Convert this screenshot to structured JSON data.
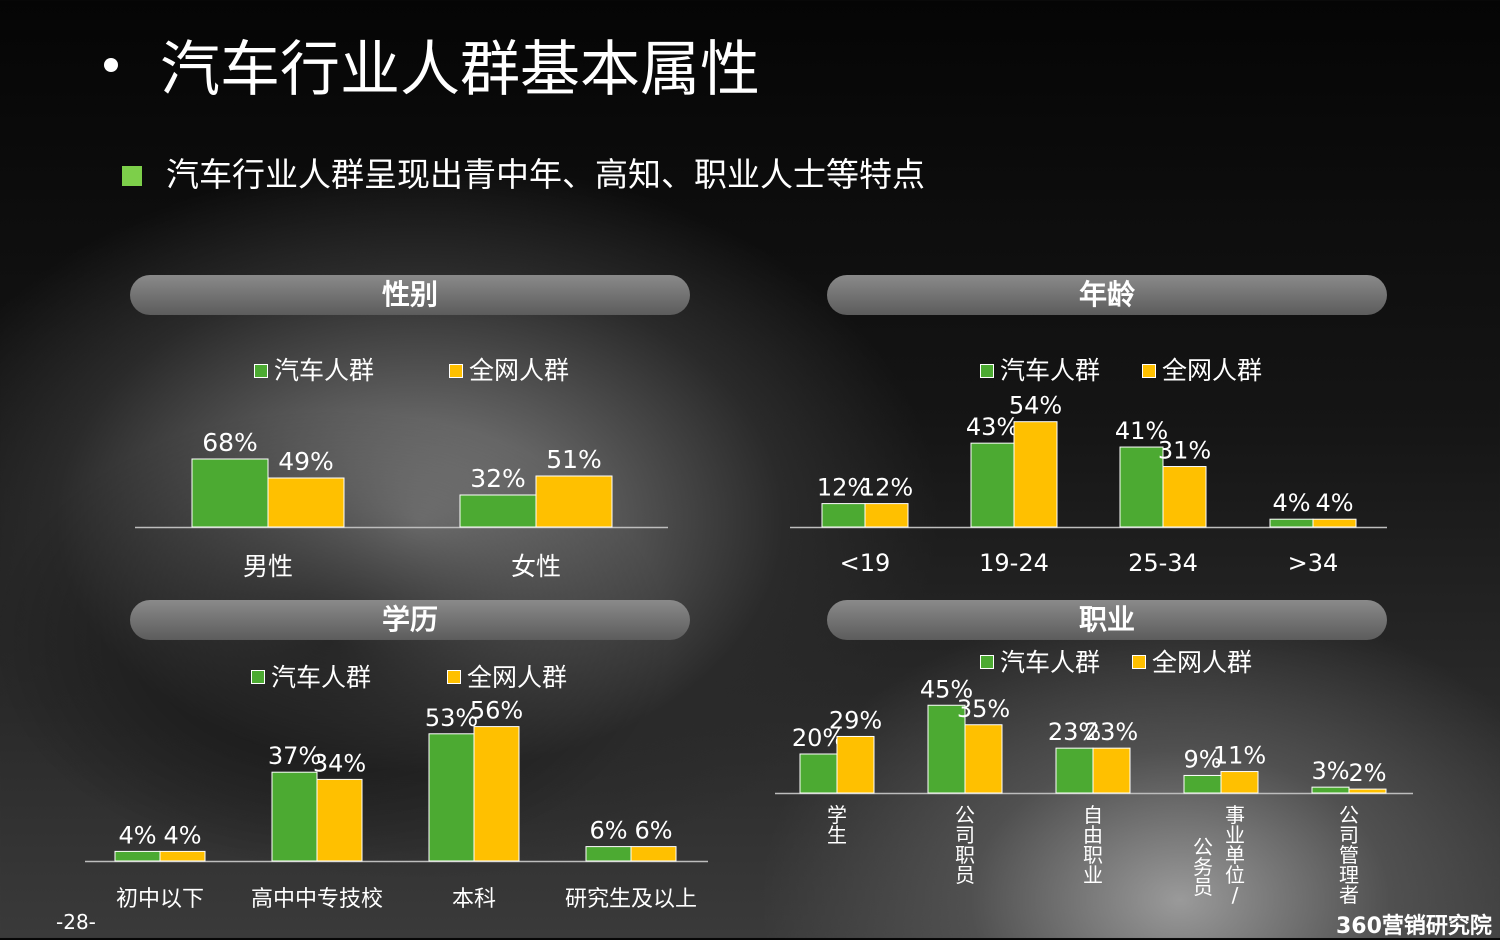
{
  "slide": {
    "title": "汽车行业人群基本属性",
    "subtitle": "汽车行业人群呈现出青中年、高知、职业人士等特点",
    "page_number": "-28-",
    "brand": "360营销研究院"
  },
  "legend": {
    "series_a": "汽车人群",
    "series_b": "全网人群"
  },
  "colors": {
    "series_a": "#4caa32",
    "series_b": "#ffc000",
    "accent": "#7dcf4a"
  },
  "sections": {
    "gender": "性别",
    "age": "年龄",
    "education": "学历",
    "occupation": "职业"
  },
  "chart_data": [
    {
      "id": "gender",
      "type": "bar",
      "title": "性别",
      "categories": [
        "男性",
        "女性"
      ],
      "series": [
        {
          "name": "汽车人群",
          "values": [
            68,
            32
          ],
          "labels": [
            "68%",
            "32%"
          ]
        },
        {
          "name": "全网人群",
          "values": [
            49,
            51
          ],
          "labels": [
            "49%",
            "51%"
          ]
        }
      ],
      "ylim": [
        0,
        100
      ],
      "legend": "top"
    },
    {
      "id": "age",
      "type": "bar",
      "title": "年龄",
      "categories": [
        "<19",
        "19-24",
        "25-34",
        ">34"
      ],
      "series": [
        {
          "name": "汽车人群",
          "values": [
            12,
            43,
            41,
            4
          ],
          "labels": [
            "12%",
            "43%",
            "41%",
            "4%"
          ]
        },
        {
          "name": "全网人群",
          "values": [
            12,
            54,
            31,
            4
          ],
          "labels": [
            "12%",
            "54%",
            "31%",
            "4%"
          ]
        }
      ],
      "ylim": [
        0,
        60
      ],
      "legend": "top"
    },
    {
      "id": "education",
      "type": "bar",
      "title": "学历",
      "categories": [
        "初中以下",
        "高中中专技校",
        "本科",
        "研究生及以上"
      ],
      "series": [
        {
          "name": "汽车人群",
          "values": [
            4,
            37,
            53,
            6
          ],
          "labels": [
            "4%",
            "37%",
            "53%",
            "6%"
          ]
        },
        {
          "name": "全网人群",
          "values": [
            4,
            34,
            56,
            6
          ],
          "labels": [
            "4%",
            "34%",
            "56%",
            "6%"
          ]
        }
      ],
      "ylim": [
        0,
        60
      ],
      "legend": "top"
    },
    {
      "id": "occupation",
      "type": "bar",
      "title": "职业",
      "categories": [
        "学生",
        "公司职员",
        "自由职业",
        "事业单位/公务员",
        "公司管理者"
      ],
      "series": [
        {
          "name": "汽车人群",
          "values": [
            20,
            45,
            23,
            9,
            3
          ],
          "labels": [
            "20%",
            "45%",
            "23%",
            "9%",
            "3%"
          ]
        },
        {
          "name": "全网人群",
          "values": [
            29,
            35,
            23,
            11,
            2
          ],
          "labels": [
            "29%",
            "35%",
            "23%",
            "11%",
            "2%"
          ]
        }
      ],
      "ylim": [
        0,
        50
      ],
      "legend": "top"
    }
  ]
}
